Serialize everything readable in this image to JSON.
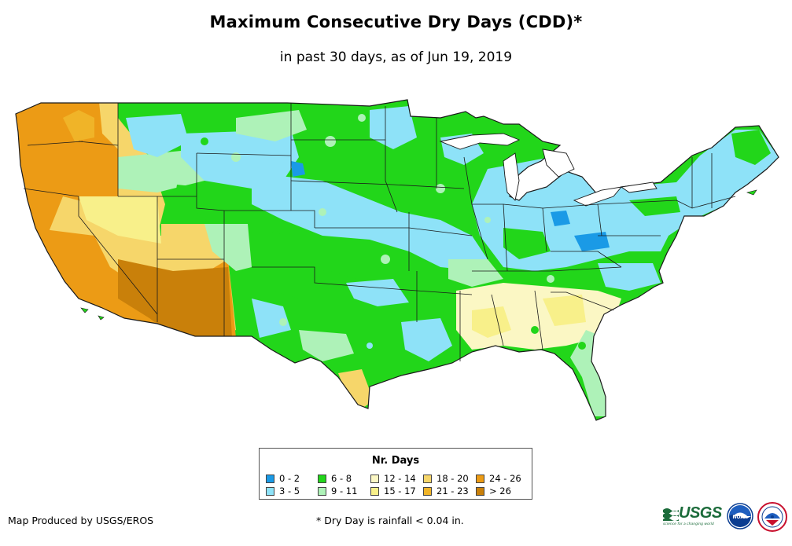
{
  "title": "Maximum Consecutive Dry Days (CDD)*",
  "subtitle": "in past 30 days, as of Jun 19, 2019",
  "legend": {
    "title": "Nr. Days",
    "items": [
      {
        "label": "0 - 2",
        "color": "#1a9ae6"
      },
      {
        "label": "3 - 5",
        "color": "#8ee2f8"
      },
      {
        "label": "6 - 8",
        "color": "#22d61a"
      },
      {
        "label": "9 - 11",
        "color": "#aef2b8"
      },
      {
        "label": "12 - 14",
        "color": "#fbf7c4"
      },
      {
        "label": "15 - 17",
        "color": "#f8f08a"
      },
      {
        "label": "18 - 20",
        "color": "#f6d66a"
      },
      {
        "label": "21 - 23",
        "color": "#f0b428"
      },
      {
        "label": "24 - 26",
        "color": "#ec9b15"
      },
      {
        "label": "> 26",
        "color": "#c9800a"
      }
    ]
  },
  "credit": "Map Produced by USGS/EROS",
  "footnote": "* Dry Day is rainfall < 0.04 in.",
  "logos": {
    "usgs_text": "USGS",
    "usgs_tagline": "science for a changing world",
    "noaa_text": "NOAA"
  },
  "map_colors": {
    "outline": "#1a1a1a",
    "water": "#ffffff"
  }
}
